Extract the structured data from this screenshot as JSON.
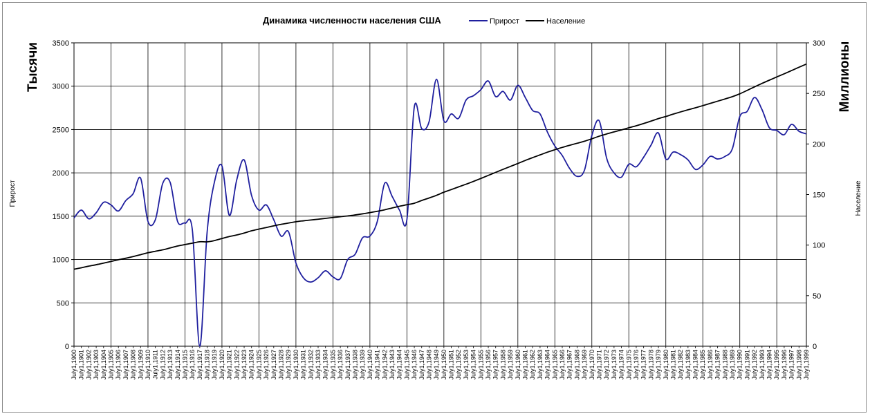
{
  "chart_data": {
    "type": "line",
    "title": "Динамика численности населения США",
    "y_left_label": "Тысячи",
    "y_left_series_label": "Прирост",
    "y_right_label": "Миллионы",
    "y_right_series_label": "Население",
    "y_left_range": [
      0,
      3500
    ],
    "y_left_ticks": [
      0,
      500,
      1000,
      1500,
      2000,
      2500,
      3000,
      3500
    ],
    "y_right_range": [
      0,
      300
    ],
    "y_right_ticks": [
      0,
      50,
      100,
      150,
      200,
      250,
      300
    ],
    "grid": "horizontal and every 5 years vertical",
    "legend_position": "top, right of title",
    "x": [
      "July1,1900",
      "July1,1901",
      "July1,1902",
      "July1,1903",
      "July1,1904",
      "July1,1905",
      "July1,1906",
      "July1,1907",
      "July1,1908",
      "July1,1909",
      "July1,1910",
      "July1,1911",
      "July1,1912",
      "July1,1913",
      "July1,1914",
      "July1,1915",
      "July1,1916",
      "July1,1917",
      "July1,1918",
      "July1,1919",
      "July1,1920",
      "July1,1921",
      "July1,1922",
      "July1,1923",
      "July1,1924",
      "July1,1925",
      "July1,1926",
      "July1,1927",
      "July1,1928",
      "July1,1929",
      "July1,1930",
      "July1,1931",
      "July1,1932",
      "July1,1933",
      "July1,1934",
      "July1,1935",
      "July1,1936",
      "July1,1937",
      "July1,1938",
      "July1,1939",
      "July1,1940",
      "July1,1941",
      "July1,1942",
      "July1,1943",
      "July1,1944",
      "July1,1945",
      "July1,1946",
      "July1,1947",
      "July1,1948",
      "July1,1949",
      "July1,1950",
      "July1,1951",
      "July1,1952",
      "July1,1953",
      "July1,1954",
      "July1,1955",
      "July1,1956",
      "July1,1957",
      "July1,1958",
      "July1,1959",
      "July1,1960",
      "July1,1961",
      "July1,1962",
      "July1,1963",
      "July1,1964",
      "July1,1965",
      "July1,1966",
      "July1,1967",
      "July1,1968",
      "July1,1969",
      "July1,1970",
      "July1,1971",
      "July1,1972",
      "July1,1973",
      "July1,1974",
      "July1,1975",
      "July1,1976",
      "July1,1977",
      "July1,1978",
      "July1,1979",
      "July1,1980",
      "July1,1981",
      "July1,1982",
      "July1,1983",
      "July1,1984",
      "July1,1985",
      "July1,1986",
      "July1,1987",
      "July1,1988",
      "July1,1989",
      "July1,1990",
      "July1,1991",
      "July1,1992",
      "July1,1993",
      "July1,1994",
      "July1,1995",
      "July1,1996",
      "July1,1997",
      "July1,1998",
      "July1,1999"
    ],
    "series": [
      {
        "name": "Прирост",
        "axis": "left",
        "color": "#1f1f9e",
        "values": [
          1480,
          1570,
          1470,
          1540,
          1660,
          1630,
          1560,
          1680,
          1760,
          1940,
          1440,
          1460,
          1880,
          1890,
          1440,
          1420,
          1340,
          0,
          1320,
          1900,
          2080,
          1510,
          1920,
          2150,
          1740,
          1570,
          1630,
          1460,
          1270,
          1320,
          960,
          790,
          740,
          790,
          870,
          800,
          780,
          1000,
          1060,
          1250,
          1270,
          1440,
          1880,
          1730,
          1570,
          1460,
          2760,
          2510,
          2590,
          3080,
          2600,
          2680,
          2630,
          2840,
          2890,
          2960,
          3060,
          2880,
          2940,
          2840,
          3010,
          2870,
          2720,
          2680,
          2470,
          2310,
          2200,
          2050,
          1960,
          2030,
          2430,
          2600,
          2170,
          2000,
          1950,
          2100,
          2070,
          2180,
          2320,
          2460,
          2160,
          2240,
          2210,
          2150,
          2040,
          2090,
          2190,
          2160,
          2190,
          2280,
          2650,
          2710,
          2870,
          2730,
          2520,
          2490,
          2440,
          2560,
          2480,
          2450
        ]
      },
      {
        "name": "Население",
        "axis": "right",
        "color": "#000000",
        "values": [
          76.1,
          77.6,
          79.2,
          80.6,
          82.2,
          83.8,
          85.5,
          87.0,
          88.7,
          90.5,
          92.4,
          93.9,
          95.3,
          97.2,
          99.1,
          100.5,
          101.9,
          103.3,
          103.2,
          104.5,
          106.5,
          108.5,
          110.0,
          111.9,
          114.1,
          115.8,
          117.4,
          119.0,
          120.5,
          121.8,
          123.1,
          124.0,
          124.8,
          125.6,
          126.4,
          127.3,
          128.1,
          128.8,
          129.8,
          130.9,
          132.1,
          133.4,
          134.9,
          136.7,
          138.4,
          139.9,
          141.4,
          144.1,
          146.6,
          149.2,
          152.3,
          154.9,
          157.6,
          160.2,
          163.0,
          165.9,
          168.9,
          171.9,
          174.9,
          177.8,
          180.7,
          183.7,
          186.5,
          189.2,
          191.9,
          194.3,
          196.6,
          198.7,
          200.7,
          202.7,
          205.1,
          207.7,
          209.9,
          211.9,
          213.9,
          216.0,
          218.0,
          220.2,
          222.6,
          225.1,
          227.2,
          229.5,
          231.7,
          233.8,
          235.8,
          237.9,
          240.1,
          242.3,
          244.5,
          246.8,
          249.6,
          253.0,
          256.5,
          259.9,
          263.1,
          266.3,
          269.4,
          272.6,
          275.9,
          279.0
        ]
      }
    ]
  }
}
